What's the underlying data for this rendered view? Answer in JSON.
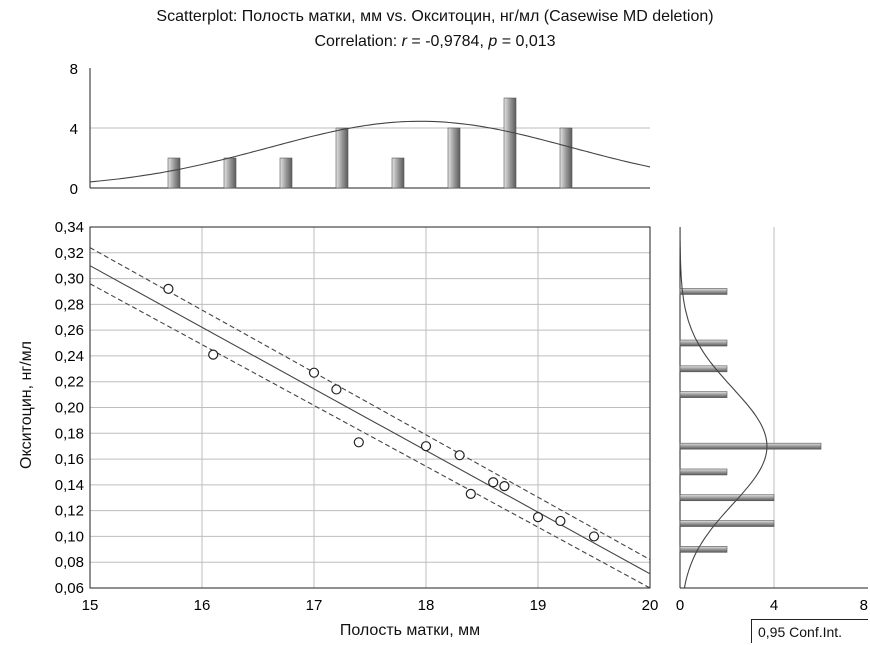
{
  "title": "Scatterplot: Полость матки, мм vs. Окситоцин, нг/мл (Casewise MD deletion)",
  "subtitle": {
    "prefix": "Correlation: ",
    "r_sym": "r",
    "r_val": " = -0,9784, ",
    "p_sym": "p",
    "p_val": " = 0,013"
  },
  "xlabel": "Полость матки, мм",
  "ylabel": "Окситоцин, нг/мл",
  "legend_label": "0,95 Conf.Int.",
  "chart_data": [
    {
      "type": "scatter",
      "x": [
        15.7,
        16.1,
        17.0,
        17.2,
        17.4,
        18.0,
        18.3,
        18.4,
        18.6,
        18.7,
        19.0,
        19.2,
        19.5
      ],
      "y": [
        0.292,
        0.241,
        0.227,
        0.214,
        0.173,
        0.17,
        0.163,
        0.133,
        0.142,
        0.139,
        0.115,
        0.112,
        0.1
      ],
      "xlim": [
        15,
        20
      ],
      "ylim": [
        0.06,
        0.34
      ],
      "xticks": [
        "15",
        "16",
        "17",
        "18",
        "19",
        "20"
      ],
      "yticks": [
        "0,06",
        "0,08",
        "0,10",
        "0,12",
        "0,14",
        "0,16",
        "0,18",
        "0,20",
        "0,22",
        "0,24",
        "0,26",
        "0,28",
        "0,30",
        "0,32",
        "0,34"
      ],
      "fit_line": {
        "x": [
          15,
          20
        ],
        "y": [
          0.31,
          0.071
        ]
      },
      "conf_upper": {
        "x": [
          15,
          20
        ],
        "y": [
          0.324,
          0.082
        ]
      },
      "conf_lower": {
        "x": [
          15,
          20
        ],
        "y": [
          0.296,
          0.06
        ]
      },
      "grid": true
    },
    {
      "type": "bar",
      "x": [
        15.75,
        16.25,
        16.75,
        17.25,
        17.75,
        18.25,
        18.75,
        19.25
      ],
      "values": [
        2,
        2,
        2,
        4,
        2,
        4,
        6,
        4
      ],
      "ylim": [
        0,
        8
      ],
      "yticks": [
        "0",
        "4",
        "8"
      ],
      "normal_curve": {
        "mean": 17.95,
        "sd": 1.35,
        "peak": 4.45
      }
    },
    {
      "type": "bar",
      "orientation": "horizontal",
      "y": [
        0.09,
        0.11,
        0.13,
        0.15,
        0.17,
        0.21,
        0.23,
        0.25,
        0.29
      ],
      "values": [
        2,
        4,
        4,
        2,
        6,
        2,
        2,
        2,
        2
      ],
      "xlim": [
        0,
        8
      ],
      "xticks": [
        "0",
        "4",
        "8"
      ],
      "normal_curve": {
        "mean": 0.17,
        "sd": 0.045,
        "peak": 3.7
      }
    }
  ]
}
